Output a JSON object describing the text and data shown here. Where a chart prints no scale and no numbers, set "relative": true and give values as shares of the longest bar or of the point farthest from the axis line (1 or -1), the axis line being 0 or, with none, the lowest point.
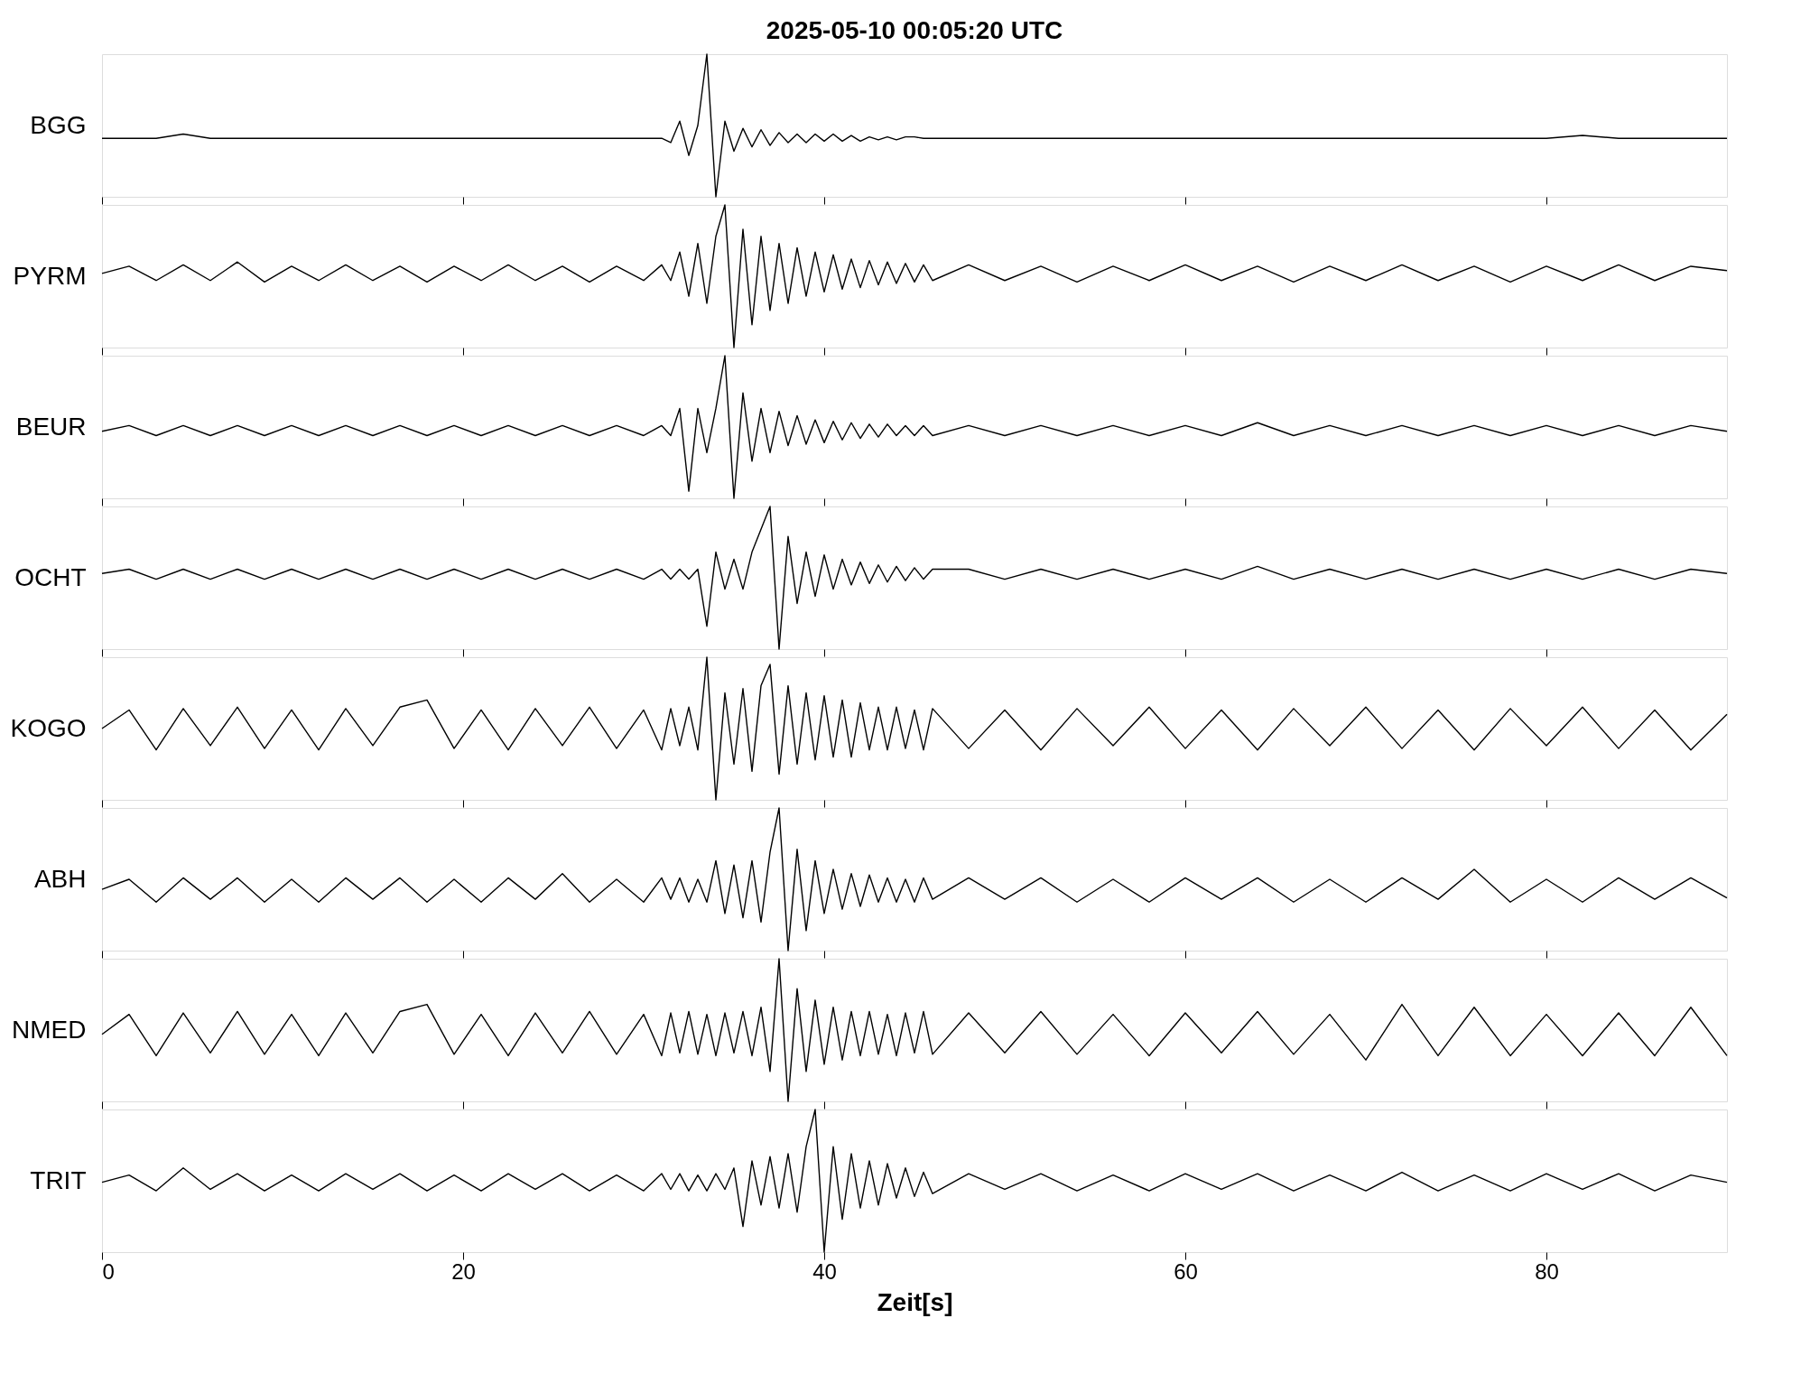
{
  "chart_data": [
    {
      "type": "line",
      "title": "2025-05-10  00:05:20 UTC",
      "ylabel": "BGG",
      "relative": true,
      "color": "#000000",
      "line_style": "solid",
      "xlim": [
        0,
        90
      ],
      "xticks": [
        0,
        20,
        40,
        60,
        80
      ],
      "tick_labels": false,
      "grid": false,
      "x": [
        0,
        1.5,
        3,
        4.5,
        6,
        7.5,
        9,
        10.5,
        12,
        13.5,
        15,
        16.5,
        18,
        19.5,
        21,
        22.5,
        24,
        25.5,
        27,
        28.5,
        30,
        31,
        31.5,
        32,
        32.5,
        33,
        33.5,
        34,
        34.5,
        35,
        35.5,
        36,
        36.5,
        37,
        37.5,
        38,
        38.5,
        39,
        39.5,
        40,
        40.5,
        41,
        41.5,
        42,
        42.5,
        43,
        43.5,
        44,
        44.5,
        45,
        45.5,
        46,
        48,
        50,
        52,
        54,
        56,
        58,
        60,
        62,
        64,
        66,
        68,
        70,
        72,
        74,
        76,
        78,
        80,
        82,
        84,
        86,
        88,
        90
      ],
      "values": [
        0.41,
        0.41,
        0.41,
        0.44,
        0.41,
        0.41,
        0.41,
        0.41,
        0.41,
        0.41,
        0.41,
        0.41,
        0.41,
        0.41,
        0.41,
        0.41,
        0.41,
        0.41,
        0.41,
        0.41,
        0.41,
        0.41,
        0.38,
        0.53,
        0.29,
        0.5,
        1,
        0,
        0.53,
        0.32,
        0.48,
        0.35,
        0.47,
        0.36,
        0.45,
        0.38,
        0.44,
        0.38,
        0.44,
        0.39,
        0.44,
        0.39,
        0.43,
        0.39,
        0.42,
        0.4,
        0.42,
        0.4,
        0.42,
        0.42,
        0.41,
        0.41,
        0.41,
        0.41,
        0.41,
        0.41,
        0.41,
        0.41,
        0.41,
        0.41,
        0.41,
        0.41,
        0.41,
        0.41,
        0.41,
        0.41,
        0.41,
        0.41,
        0.41,
        0.43,
        0.41,
        0.41,
        0.41,
        0.41
      ]
    },
    {
      "type": "line",
      "ylabel": "PYRM",
      "relative": true,
      "color": "#000000",
      "line_style": "solid",
      "xlim": [
        0,
        90
      ],
      "xticks": [
        0,
        20,
        40,
        60,
        80
      ],
      "tick_labels": false,
      "grid": false,
      "x": [
        0,
        1.5,
        3,
        4.5,
        6,
        7.5,
        9,
        10.5,
        12,
        13.5,
        15,
        16.5,
        18,
        19.5,
        21,
        22.5,
        24,
        25.5,
        27,
        28.5,
        30,
        31,
        31.5,
        32,
        32.5,
        33,
        33.5,
        34,
        34.5,
        35,
        35.5,
        36,
        36.5,
        37,
        37.5,
        38,
        38.5,
        39,
        39.5,
        40,
        40.5,
        41,
        41.5,
        42,
        42.5,
        43,
        43.5,
        44,
        44.5,
        45,
        45.5,
        46,
        48,
        50,
        52,
        54,
        56,
        58,
        60,
        62,
        64,
        66,
        68,
        70,
        72,
        74,
        76,
        78,
        80,
        82,
        84,
        86,
        88,
        90
      ],
      "values": [
        0.52,
        0.57,
        0.47,
        0.58,
        0.47,
        0.6,
        0.46,
        0.57,
        0.47,
        0.58,
        0.47,
        0.57,
        0.46,
        0.57,
        0.47,
        0.58,
        0.47,
        0.57,
        0.46,
        0.57,
        0.47,
        0.58,
        0.47,
        0.67,
        0.36,
        0.73,
        0.31,
        0.78,
        1,
        0,
        0.83,
        0.16,
        0.78,
        0.26,
        0.73,
        0.31,
        0.7,
        0.36,
        0.67,
        0.39,
        0.65,
        0.41,
        0.62,
        0.42,
        0.61,
        0.44,
        0.6,
        0.45,
        0.59,
        0.46,
        0.58,
        0.47,
        0.58,
        0.47,
        0.57,
        0.46,
        0.57,
        0.47,
        0.58,
        0.47,
        0.57,
        0.46,
        0.57,
        0.47,
        0.58,
        0.47,
        0.57,
        0.46,
        0.57,
        0.47,
        0.58,
        0.47,
        0.57,
        0.54
      ]
    },
    {
      "type": "line",
      "ylabel": "BEUR",
      "relative": true,
      "color": "#000000",
      "line_style": "solid",
      "xlim": [
        0,
        90
      ],
      "xticks": [
        0,
        20,
        40,
        60,
        80
      ],
      "tick_labels": false,
      "grid": false,
      "x": [
        0,
        1.5,
        3,
        4.5,
        6,
        7.5,
        9,
        10.5,
        12,
        13.5,
        15,
        16.5,
        18,
        19.5,
        21,
        22.5,
        24,
        25.5,
        27,
        28.5,
        30,
        31,
        31.5,
        32,
        32.5,
        33,
        33.5,
        34,
        34.5,
        35,
        35.5,
        36,
        36.5,
        37,
        37.5,
        38,
        38.5,
        39,
        39.5,
        40,
        40.5,
        41,
        41.5,
        42,
        42.5,
        43,
        43.5,
        44,
        44.5,
        45,
        45.5,
        46,
        48,
        50,
        52,
        54,
        56,
        58,
        60,
        62,
        64,
        66,
        68,
        70,
        72,
        74,
        76,
        78,
        80,
        82,
        84,
        86,
        88,
        90
      ],
      "values": [
        0.47,
        0.51,
        0.44,
        0.51,
        0.44,
        0.51,
        0.44,
        0.51,
        0.44,
        0.51,
        0.44,
        0.51,
        0.44,
        0.51,
        0.44,
        0.51,
        0.44,
        0.51,
        0.44,
        0.51,
        0.44,
        0.51,
        0.44,
        0.63,
        0.05,
        0.63,
        0.32,
        0.63,
        1,
        0,
        0.74,
        0.26,
        0.63,
        0.32,
        0.61,
        0.37,
        0.58,
        0.38,
        0.55,
        0.39,
        0.54,
        0.41,
        0.53,
        0.42,
        0.52,
        0.43,
        0.52,
        0.44,
        0.51,
        0.44,
        0.51,
        0.44,
        0.51,
        0.44,
        0.51,
        0.44,
        0.51,
        0.44,
        0.51,
        0.44,
        0.53,
        0.44,
        0.51,
        0.44,
        0.51,
        0.44,
        0.51,
        0.44,
        0.51,
        0.44,
        0.51,
        0.44,
        0.51,
        0.47
      ]
    },
    {
      "type": "line",
      "ylabel": "OCHT",
      "relative": true,
      "color": "#000000",
      "line_style": "solid",
      "xlim": [
        0,
        90
      ],
      "xticks": [
        0,
        20,
        40,
        60,
        80
      ],
      "tick_labels": false,
      "grid": false,
      "x": [
        0,
        1.5,
        3,
        4.5,
        6,
        7.5,
        9,
        10.5,
        12,
        13.5,
        15,
        16.5,
        18,
        19.5,
        21,
        22.5,
        24,
        25.5,
        27,
        28.5,
        30,
        31,
        31.5,
        32,
        32.5,
        33,
        33.5,
        34,
        34.5,
        35,
        35.5,
        36,
        36.5,
        37,
        37.5,
        38,
        38.5,
        39,
        39.5,
        40,
        40.5,
        41,
        41.5,
        42,
        42.5,
        43,
        43.5,
        44,
        44.5,
        45,
        45.5,
        46,
        48,
        50,
        52,
        54,
        56,
        58,
        60,
        62,
        64,
        66,
        68,
        70,
        72,
        74,
        76,
        78,
        80,
        82,
        84,
        86,
        88,
        90
      ],
      "values": [
        0.53,
        0.56,
        0.49,
        0.56,
        0.49,
        0.56,
        0.49,
        0.56,
        0.49,
        0.56,
        0.49,
        0.56,
        0.49,
        0.56,
        0.49,
        0.56,
        0.49,
        0.56,
        0.49,
        0.56,
        0.49,
        0.56,
        0.49,
        0.56,
        0.49,
        0.56,
        0.16,
        0.68,
        0.42,
        0.63,
        0.42,
        0.68,
        0.84,
        1,
        0,
        0.79,
        0.32,
        0.68,
        0.37,
        0.66,
        0.42,
        0.63,
        0.45,
        0.61,
        0.46,
        0.59,
        0.47,
        0.58,
        0.48,
        0.57,
        0.49,
        0.56,
        0.56,
        0.49,
        0.56,
        0.49,
        0.56,
        0.49,
        0.56,
        0.49,
        0.58,
        0.49,
        0.56,
        0.49,
        0.56,
        0.49,
        0.56,
        0.49,
        0.56,
        0.49,
        0.56,
        0.49,
        0.56,
        0.53
      ]
    },
    {
      "type": "line",
      "ylabel": "KOGO",
      "relative": true,
      "color": "#000000",
      "line_style": "solid",
      "xlim": [
        0,
        90
      ],
      "xticks": [
        0,
        20,
        40,
        60,
        80
      ],
      "tick_labels": false,
      "grid": false,
      "x": [
        0,
        1.5,
        3,
        4.5,
        6,
        7.5,
        9,
        10.5,
        12,
        13.5,
        15,
        16.5,
        18,
        19.5,
        21,
        22.5,
        24,
        25.5,
        27,
        28.5,
        30,
        31,
        31.5,
        32,
        32.5,
        33,
        33.5,
        34,
        34.5,
        35,
        35.5,
        36,
        36.5,
        37,
        37.5,
        38,
        38.5,
        39,
        39.5,
        40,
        40.5,
        41,
        41.5,
        42,
        42.5,
        43,
        43.5,
        44,
        44.5,
        45,
        45.5,
        46,
        48,
        50,
        52,
        54,
        56,
        58,
        60,
        62,
        64,
        66,
        68,
        70,
        72,
        74,
        76,
        78,
        80,
        82,
        84,
        86,
        88,
        90
      ],
      "values": [
        0.5,
        0.63,
        0.35,
        0.64,
        0.38,
        0.65,
        0.36,
        0.63,
        0.35,
        0.64,
        0.38,
        0.65,
        0.7,
        0.36,
        0.63,
        0.35,
        0.64,
        0.38,
        0.65,
        0.36,
        0.63,
        0.35,
        0.64,
        0.38,
        0.65,
        0.35,
        1,
        0,
        0.75,
        0.25,
        0.78,
        0.2,
        0.8,
        0.95,
        0.18,
        0.8,
        0.25,
        0.75,
        0.28,
        0.73,
        0.3,
        0.7,
        0.3,
        0.68,
        0.35,
        0.65,
        0.35,
        0.65,
        0.36,
        0.63,
        0.35,
        0.64,
        0.36,
        0.63,
        0.35,
        0.64,
        0.38,
        0.65,
        0.36,
        0.63,
        0.35,
        0.64,
        0.38,
        0.65,
        0.36,
        0.63,
        0.35,
        0.64,
        0.38,
        0.65,
        0.36,
        0.63,
        0.35,
        0.6
      ]
    },
    {
      "type": "line",
      "ylabel": "ABH",
      "relative": true,
      "color": "#000000",
      "line_style": "solid",
      "xlim": [
        0,
        90
      ],
      "xticks": [
        0,
        20,
        40,
        60,
        80
      ],
      "tick_labels": false,
      "grid": false,
      "x": [
        0,
        1.5,
        3,
        4.5,
        6,
        7.5,
        9,
        10.5,
        12,
        13.5,
        15,
        16.5,
        18,
        19.5,
        21,
        22.5,
        24,
        25.5,
        27,
        28.5,
        30,
        31,
        31.5,
        32,
        32.5,
        33,
        33.5,
        34,
        34.5,
        35,
        35.5,
        36,
        36.5,
        37,
        37.5,
        38,
        38.5,
        39,
        39.5,
        40,
        40.5,
        41,
        41.5,
        42,
        42.5,
        43,
        43.5,
        44,
        44.5,
        45,
        45.5,
        46,
        48,
        50,
        52,
        54,
        56,
        58,
        60,
        62,
        64,
        66,
        68,
        70,
        72,
        74,
        76,
        78,
        80,
        82,
        84,
        86,
        88,
        90
      ],
      "values": [
        0.43,
        0.5,
        0.34,
        0.51,
        0.36,
        0.51,
        0.34,
        0.5,
        0.34,
        0.51,
        0.36,
        0.51,
        0.34,
        0.5,
        0.34,
        0.51,
        0.36,
        0.54,
        0.34,
        0.5,
        0.34,
        0.51,
        0.36,
        0.51,
        0.34,
        0.5,
        0.34,
        0.63,
        0.26,
        0.6,
        0.23,
        0.63,
        0.2,
        0.69,
        1,
        0,
        0.71,
        0.14,
        0.63,
        0.26,
        0.57,
        0.29,
        0.54,
        0.31,
        0.53,
        0.34,
        0.51,
        0.34,
        0.5,
        0.34,
        0.51,
        0.36,
        0.51,
        0.36,
        0.51,
        0.34,
        0.5,
        0.34,
        0.51,
        0.36,
        0.51,
        0.34,
        0.5,
        0.34,
        0.51,
        0.36,
        0.57,
        0.34,
        0.5,
        0.34,
        0.51,
        0.36,
        0.51,
        0.37
      ]
    },
    {
      "type": "line",
      "ylabel": "NMED",
      "relative": true,
      "color": "#000000",
      "line_style": "solid",
      "xlim": [
        0,
        90
      ],
      "xticks": [
        0,
        20,
        40,
        60,
        80
      ],
      "tick_labels": false,
      "grid": false,
      "x": [
        0,
        1.5,
        3,
        4.5,
        6,
        7.5,
        9,
        10.5,
        12,
        13.5,
        15,
        16.5,
        18,
        19.5,
        21,
        22.5,
        24,
        25.5,
        27,
        28.5,
        30,
        31,
        31.5,
        32,
        32.5,
        33,
        33.5,
        34,
        34.5,
        35,
        35.5,
        36,
        36.5,
        37,
        37.5,
        38,
        38.5,
        39,
        39.5,
        40,
        40.5,
        41,
        41.5,
        42,
        42.5,
        43,
        43.5,
        44,
        44.5,
        45,
        45.5,
        46,
        48,
        50,
        52,
        54,
        56,
        58,
        60,
        62,
        64,
        66,
        68,
        70,
        72,
        74,
        76,
        78,
        80,
        82,
        84,
        86,
        88,
        90
      ],
      "values": [
        0.47,
        0.61,
        0.32,
        0.62,
        0.34,
        0.63,
        0.33,
        0.61,
        0.32,
        0.62,
        0.34,
        0.63,
        0.68,
        0.33,
        0.61,
        0.32,
        0.62,
        0.34,
        0.63,
        0.33,
        0.61,
        0.32,
        0.62,
        0.34,
        0.63,
        0.33,
        0.61,
        0.32,
        0.62,
        0.34,
        0.63,
        0.32,
        0.66,
        0.21,
        1,
        0,
        0.79,
        0.21,
        0.71,
        0.26,
        0.66,
        0.29,
        0.63,
        0.32,
        0.63,
        0.33,
        0.61,
        0.32,
        0.62,
        0.34,
        0.63,
        0.33,
        0.62,
        0.34,
        0.63,
        0.33,
        0.61,
        0.32,
        0.62,
        0.34,
        0.63,
        0.33,
        0.61,
        0.29,
        0.68,
        0.32,
        0.66,
        0.32,
        0.61,
        0.32,
        0.62,
        0.32,
        0.66,
        0.32
      ]
    },
    {
      "type": "line",
      "ylabel": "TRIT",
      "xlabel": "Zeit[s]",
      "relative": true,
      "color": "#000000",
      "line_style": "solid",
      "xlim": [
        0,
        90
      ],
      "xticks": [
        0,
        20,
        40,
        60,
        80
      ],
      "tick_labels": "x",
      "grid": false,
      "x": [
        0,
        1.5,
        3,
        4.5,
        6,
        7.5,
        9,
        10.5,
        12,
        13.5,
        15,
        16.5,
        18,
        19.5,
        21,
        22.5,
        24,
        25.5,
        27,
        28.5,
        30,
        31,
        31.5,
        32,
        32.5,
        33,
        33.5,
        34,
        34.5,
        35,
        35.5,
        36,
        36.5,
        37,
        37.5,
        38,
        38.5,
        39,
        39.5,
        40,
        40.5,
        41,
        41.5,
        42,
        42.5,
        43,
        43.5,
        44,
        44.5,
        45,
        45.5,
        46,
        48,
        50,
        52,
        54,
        56,
        58,
        60,
        62,
        64,
        66,
        68,
        70,
        72,
        74,
        76,
        78,
        80,
        82,
        84,
        86,
        88,
        90
      ],
      "values": [
        0.49,
        0.54,
        0.43,
        0.59,
        0.44,
        0.55,
        0.43,
        0.54,
        0.43,
        0.55,
        0.44,
        0.55,
        0.43,
        0.54,
        0.43,
        0.55,
        0.44,
        0.55,
        0.43,
        0.54,
        0.43,
        0.55,
        0.44,
        0.55,
        0.43,
        0.54,
        0.43,
        0.55,
        0.44,
        0.59,
        0.18,
        0.64,
        0.33,
        0.67,
        0.31,
        0.69,
        0.28,
        0.74,
        1,
        0,
        0.74,
        0.23,
        0.69,
        0.31,
        0.64,
        0.33,
        0.62,
        0.38,
        0.59,
        0.39,
        0.56,
        0.41,
        0.55,
        0.44,
        0.55,
        0.43,
        0.54,
        0.43,
        0.55,
        0.44,
        0.55,
        0.43,
        0.54,
        0.43,
        0.56,
        0.43,
        0.54,
        0.43,
        0.55,
        0.44,
        0.55,
        0.43,
        0.54,
        0.49
      ]
    }
  ]
}
